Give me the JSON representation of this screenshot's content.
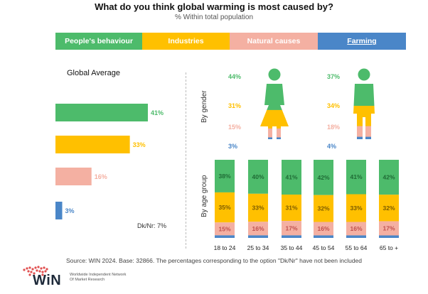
{
  "header": {
    "title": "What do you think global warming is most caused by?",
    "subtitle": "% Within total population"
  },
  "categories": [
    {
      "label": "People's behaviour",
      "color": "#4dbb6b"
    },
    {
      "label": "Industries",
      "color": "#ffc000"
    },
    {
      "label": "Natural causes",
      "color": "#f4b0a2"
    },
    {
      "label": "Farming",
      "color": "#4a86c8"
    }
  ],
  "global_average": {
    "title": "Global Average",
    "dk_nr_label": "Dk/Nr: 7%"
  },
  "section_labels": {
    "gender": "By gender",
    "age": "By age group"
  },
  "footer": {
    "source": "Source: WIN 2024. Base: 32866. The percentages corresponding to the option \"Dk/Nr\" have not been included",
    "logo_text": "WiN",
    "logo_subtext": "Worldwide Independent Network Of Market Research"
  },
  "chart_data": [
    {
      "type": "bar",
      "title": "Global Average",
      "orientation": "horizontal",
      "categories": [
        "People's behaviour",
        "Industries",
        "Natural causes",
        "Farming"
      ],
      "values": [
        41,
        33,
        16,
        3
      ],
      "labels": [
        "41%",
        "33%",
        "16%",
        "3%"
      ],
      "colors": [
        "#4dbb6b",
        "#ffc000",
        "#f4b0a2",
        "#4a86c8"
      ]
    },
    {
      "type": "bar",
      "title": "By gender",
      "series": [
        {
          "name": "Women",
          "values": [
            44,
            31,
            15,
            3
          ],
          "labels": [
            "44%",
            "31%",
            "15%",
            "3%"
          ]
        },
        {
          "name": "Men",
          "values": [
            37,
            34,
            18,
            4
          ],
          "labels": [
            "37%",
            "34%",
            "18%",
            "4%"
          ]
        }
      ],
      "categories": [
        "People's behaviour",
        "Industries",
        "Natural causes",
        "Farming"
      ]
    },
    {
      "type": "bar",
      "stacked": true,
      "title": "By age group",
      "categories": [
        "18 to 24",
        "25 to 34",
        "35 to 44",
        "45 to 54",
        "55 to 64",
        "65 to +"
      ],
      "series": [
        {
          "name": "People's behaviour",
          "color": "#4dbb6b",
          "values": [
            38,
            40,
            41,
            42,
            41,
            42
          ]
        },
        {
          "name": "Industries",
          "color": "#ffc000",
          "values": [
            35,
            33,
            31,
            32,
            33,
            32
          ]
        },
        {
          "name": "Natural causes",
          "color": "#f4b0a2",
          "values": [
            15,
            16,
            17,
            16,
            16,
            17
          ]
        },
        {
          "name": "Farming",
          "color": "#4a86c8",
          "values": [
            3,
            3,
            3,
            3,
            3,
            3
          ]
        }
      ]
    }
  ]
}
